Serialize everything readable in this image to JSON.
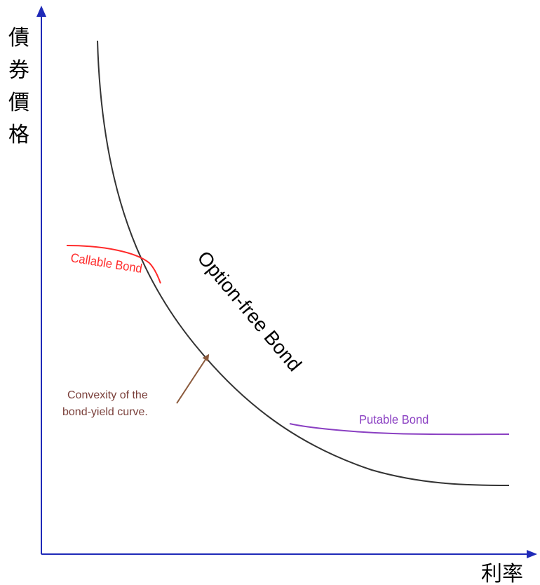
{
  "axes": {
    "y_label_chars": [
      "債",
      "券",
      "價",
      "格"
    ],
    "x_label": "利率",
    "axis_color": "#1f2ab8"
  },
  "curves": {
    "option_free": {
      "label": "Option-free Bond",
      "color": "#333333"
    },
    "callable": {
      "label": "Callable Bond",
      "color": "#ff2a2a"
    },
    "putable": {
      "label": "Putable Bond",
      "color": "#8a3fc2"
    }
  },
  "annotation": {
    "line1": "Convexity of the",
    "line2": "bond-yield curve.",
    "color": "#8b5a3c"
  }
}
